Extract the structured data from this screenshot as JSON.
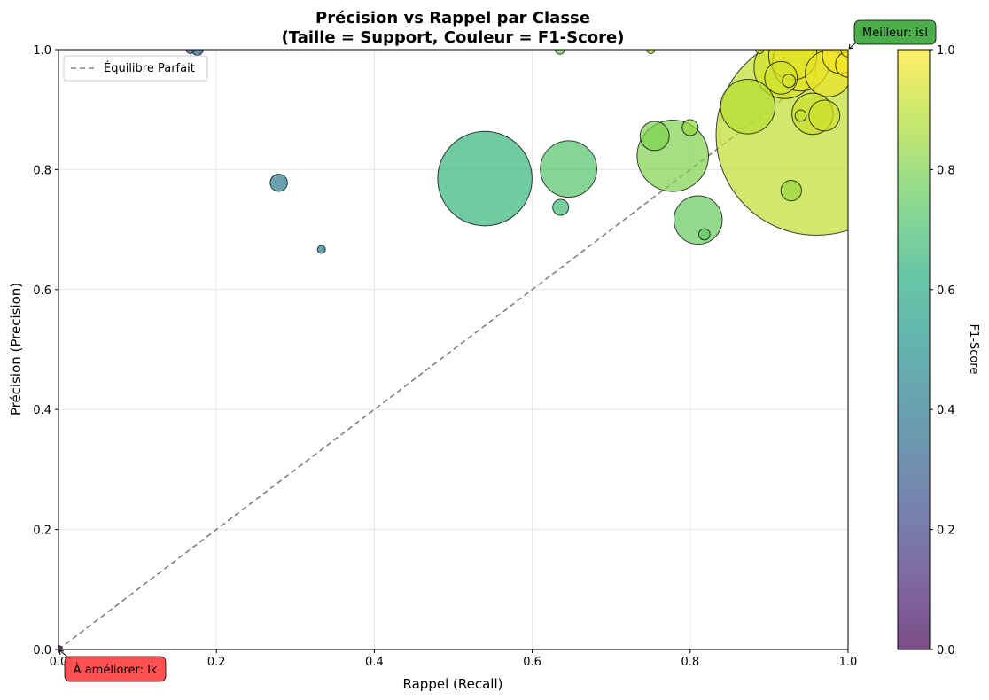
{
  "chart_data": {
    "type": "scatter",
    "title": "Précision vs Rappel par Classe",
    "subtitle": "(Taille = Support, Couleur = F1-Score)",
    "xlabel": "Rappel (Recall)",
    "ylabel": "Précision (Precision)",
    "xlim": [
      0,
      1
    ],
    "ylim": [
      0,
      1
    ],
    "x_ticks": [
      "0.0",
      "0.2",
      "0.4",
      "0.6",
      "0.8",
      "1.0"
    ],
    "y_ticks": [
      "0.0",
      "0.2",
      "0.4",
      "0.6",
      "0.8",
      "1.0"
    ],
    "grid": true,
    "legend": {
      "position": "top-left",
      "entries": [
        "Équilibre Parfait"
      ]
    },
    "reference_line": {
      "label": "Équilibre Parfait",
      "style": "dashed",
      "color": "#808080",
      "x": [
        0,
        1
      ],
      "y": [
        0,
        1
      ]
    },
    "colorbar": {
      "label": "F1-Score",
      "range": [
        0,
        1
      ],
      "ticks": [
        "0.0",
        "0.2",
        "0.4",
        "0.6",
        "0.8",
        "1.0"
      ],
      "colormap": "viridis"
    },
    "annotations": [
      {
        "text": "Meilleur: isl",
        "x": 1.0,
        "y": 1.0,
        "color": "#2ca02c"
      },
      {
        "text": "À améliorer: lk",
        "x": 0.0,
        "y": 0.0,
        "color": "#ff3333"
      }
    ],
    "points": [
      {
        "recall": 0.96,
        "precision": 0.858,
        "f1": 0.9,
        "support": 1900
      },
      {
        "recall": 0.54,
        "precision": 0.785,
        "f1": 0.65,
        "support": 420
      },
      {
        "recall": 0.778,
        "precision": 0.823,
        "f1": 0.8,
        "support": 240
      },
      {
        "recall": 0.646,
        "precision": 0.801,
        "f1": 0.72,
        "support": 150
      },
      {
        "recall": 0.873,
        "precision": 0.905,
        "f1": 0.89,
        "support": 140
      },
      {
        "recall": 0.92,
        "precision": 0.97,
        "f1": 0.94,
        "support": 180
      },
      {
        "recall": 0.94,
        "precision": 0.978,
        "f1": 0.96,
        "support": 150
      },
      {
        "recall": 0.975,
        "precision": 0.96,
        "f1": 0.97,
        "support": 100
      },
      {
        "recall": 0.81,
        "precision": 0.716,
        "f1": 0.76,
        "support": 110
      },
      {
        "recall": 0.955,
        "precision": 0.893,
        "f1": 0.92,
        "support": 80
      },
      {
        "recall": 0.93,
        "precision": 0.99,
        "f1": 0.96,
        "support": 110
      },
      {
        "recall": 0.99,
        "precision": 0.99,
        "f1": 0.99,
        "support": 60
      },
      {
        "recall": 0.915,
        "precision": 0.953,
        "f1": 0.93,
        "support": 50
      },
      {
        "recall": 0.97,
        "precision": 0.89,
        "f1": 0.93,
        "support": 45
      },
      {
        "recall": 0.755,
        "precision": 0.856,
        "f1": 0.8,
        "support": 40
      },
      {
        "recall": 0.928,
        "precision": 0.765,
        "f1": 0.84,
        "support": 20
      },
      {
        "recall": 0.8,
        "precision": 0.87,
        "f1": 0.83,
        "support": 12
      },
      {
        "recall": 0.636,
        "precision": 0.737,
        "f1": 0.68,
        "support": 12
      },
      {
        "recall": 0.279,
        "precision": 0.778,
        "f1": 0.41,
        "support": 14
      },
      {
        "recall": 0.333,
        "precision": 0.667,
        "f1": 0.44,
        "support": 3
      },
      {
        "recall": 0.818,
        "precision": 0.692,
        "f1": 0.75,
        "support": 6
      },
      {
        "recall": 0.94,
        "precision": 0.89,
        "f1": 0.91,
        "support": 6
      },
      {
        "recall": 0.925,
        "precision": 0.948,
        "f1": 0.94,
        "support": 8
      },
      {
        "recall": 0.176,
        "precision": 1.0,
        "f1": 0.3,
        "support": 6
      },
      {
        "recall": 0.167,
        "precision": 1.0,
        "f1": 0.29,
        "support": 3
      },
      {
        "recall": 0.635,
        "precision": 1.0,
        "f1": 0.78,
        "support": 4
      },
      {
        "recall": 0.75,
        "precision": 1.0,
        "f1": 0.86,
        "support": 3
      },
      {
        "recall": 0.888,
        "precision": 1.0,
        "f1": 0.94,
        "support": 3
      },
      {
        "recall": 1.0,
        "precision": 0.975,
        "f1": 0.99,
        "support": 30
      },
      {
        "recall": 1.0,
        "precision": 1.0,
        "f1": 1.0,
        "support": 10
      },
      {
        "recall": 0.0,
        "precision": 0.0,
        "f1": 0.0,
        "support": 3
      }
    ]
  }
}
